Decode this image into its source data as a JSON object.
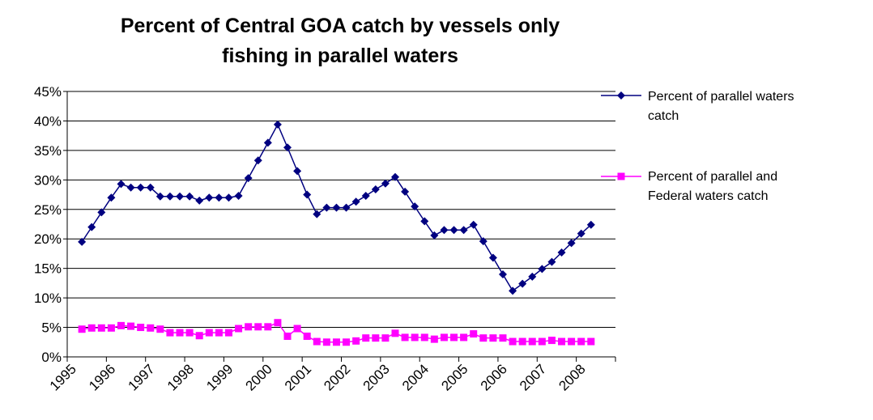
{
  "chart_data": {
    "type": "line",
    "title": "Percent of Central GOA catch by vessels only fishing in parallel waters",
    "categories": [
      "1995",
      null,
      null,
      null,
      "1996",
      null,
      null,
      null,
      "1997",
      null,
      null,
      null,
      "1998",
      null,
      null,
      null,
      "1999",
      null,
      null,
      null,
      "2000",
      null,
      null,
      null,
      "2001",
      null,
      null,
      null,
      "2002",
      null,
      null,
      null,
      "2003",
      null,
      null,
      null,
      "2004",
      null,
      null,
      null,
      "2005",
      null,
      null,
      null,
      "2006",
      null,
      null,
      null,
      "2007",
      null,
      null,
      null,
      "2008",
      null,
      null,
      null
    ],
    "series": [
      {
        "name": "Percent of parallel waters catch",
        "color": "#000080",
        "marker": "diamond",
        "values": [
          19.5,
          22,
          24.5,
          27,
          29.3,
          28.7,
          28.7,
          28.7,
          27.2,
          27.2,
          27.2,
          27.2,
          26.5,
          27,
          27,
          27,
          27.3,
          30.3,
          33.3,
          36.3,
          39.4,
          35.5,
          31.5,
          27.5,
          24.2,
          25.3,
          25.3,
          25.3,
          26.3,
          27.3,
          28.4,
          29.4,
          30.5,
          28,
          25.5,
          23,
          20.6,
          21.5,
          21.5,
          21.5,
          22.4,
          19.6,
          16.8,
          14,
          11.2,
          12.4,
          13.6,
          14.9,
          16.1,
          17.7,
          19.3,
          20.9,
          22.4,
          null,
          null,
          null
        ]
      },
      {
        "name": "Percent of parallel and Federal waters catch",
        "color": "#ff00ff",
        "marker": "square",
        "values": [
          4.7,
          4.9,
          4.9,
          4.9,
          5.3,
          5.2,
          5.0,
          4.9,
          4.7,
          4.1,
          4.1,
          4.1,
          3.6,
          4.1,
          4.1,
          4.1,
          4.8,
          5.1,
          5.1,
          5.1,
          5.8,
          3.5,
          4.8,
          3.5,
          2.6,
          2.5,
          2.5,
          2.5,
          2.7,
          3.2,
          3.2,
          3.2,
          4.0,
          3.3,
          3.3,
          3.3,
          3.0,
          3.3,
          3.3,
          3.3,
          3.9,
          3.2,
          3.2,
          3.2,
          2.6,
          2.6,
          2.6,
          2.6,
          2.8,
          2.6,
          2.6,
          2.6,
          2.6,
          null,
          null,
          null
        ]
      }
    ],
    "ylim": [
      0,
      45
    ],
    "yticks": [
      {
        "value": 0,
        "label": "0%"
      },
      {
        "value": 5,
        "label": "5%"
      },
      {
        "value": 10,
        "label": "10%"
      },
      {
        "value": 15,
        "label": "15%"
      },
      {
        "value": 20,
        "label": "20%"
      },
      {
        "value": 25,
        "label": "25%"
      },
      {
        "value": 30,
        "label": "30%"
      },
      {
        "value": 35,
        "label": "35%"
      },
      {
        "value": 40,
        "label": "40%"
      },
      {
        "value": 45,
        "label": "45%"
      }
    ],
    "grid": true,
    "legend": "right"
  }
}
